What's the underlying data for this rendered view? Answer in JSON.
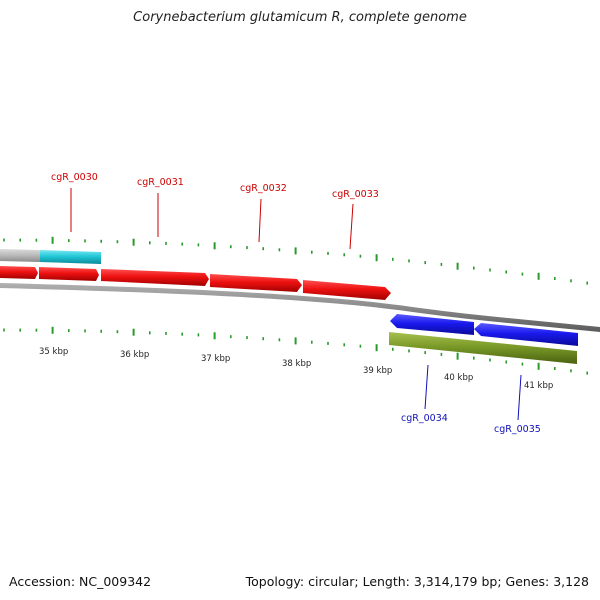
{
  "title": "Corynebacterium glutamicum R, complete genome",
  "accession": "Accession: NC_009342",
  "summary": "Topology: circular; Length: 3,314,179 bp; Genes: 3,128",
  "colors": {
    "forward_cds": "#ee1111",
    "reverse_cds": "#1a1aee",
    "other_gene": "#7a9a28",
    "cyan_feature": "#22c8d8",
    "gray_feature": "#b8b8b8",
    "ticks": "#2a9a2a",
    "forward_label": "#cc0000",
    "reverse_label": "#1010bb",
    "backbone": "#888888"
  },
  "scale": {
    "kbp_labels": [
      "35 kbp",
      "36 kbp",
      "37 kbp",
      "38 kbp",
      "39 kbp",
      "40 kbp",
      "41 kbp"
    ]
  },
  "genes": {
    "forward_labels": [
      "cgR_0030",
      "cgR_0031",
      "cgR_0032",
      "cgR_0033"
    ],
    "reverse_labels": [
      "cgR_0034",
      "cgR_0035"
    ]
  }
}
